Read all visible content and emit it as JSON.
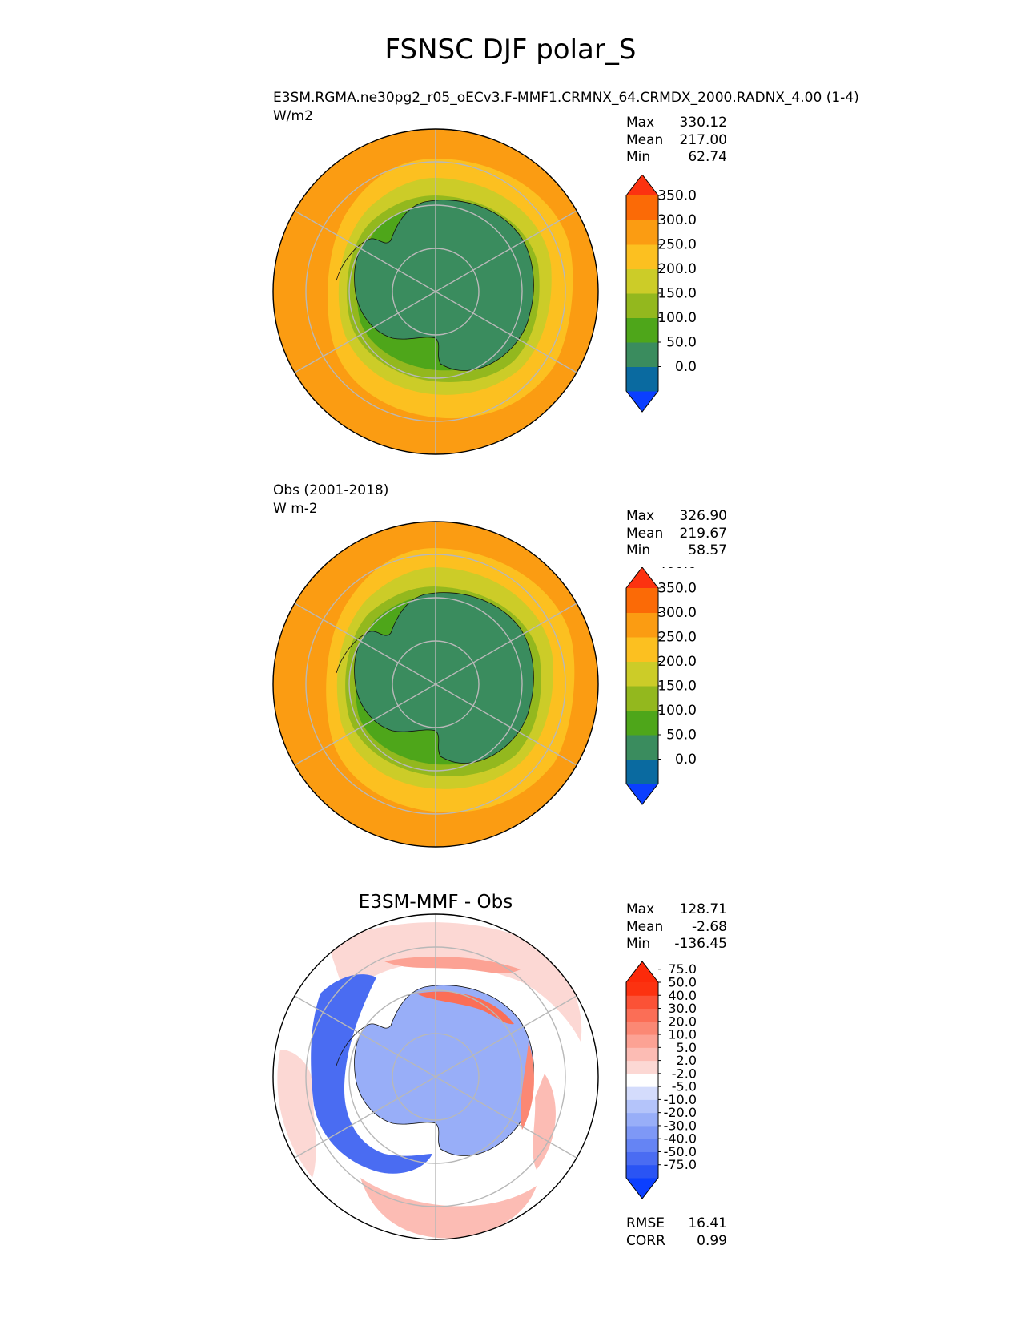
{
  "page": {
    "title": "FSNSC DJF polar_S"
  },
  "panels": [
    {
      "id": "test",
      "label_line1": "E3SM.RGMA.ne30pg2_r05_oECv3.F-MMF1.CRMNX_64.CRMDX_2000.RADNX_4.00 (1-4)",
      "label_line2": "W/m2",
      "stats": {
        "max_label": "Max",
        "max": "330.12",
        "mean_label": "Mean",
        "mean": "217.00",
        "min_label": "Min",
        "min": "62.74"
      },
      "colorbar": {
        "levels": [
          "0.0",
          "50.0",
          "100.0",
          "150.0",
          "200.0",
          "250.0",
          "300.0",
          "350.0",
          "400.0"
        ],
        "colors": [
          "#0b3fff",
          "#0a6aa0",
          "#3a8c5e",
          "#4ea61a",
          "#93b81e",
          "#cccc28",
          "#fcc020",
          "#fb9c12",
          "#fb6a06",
          "#fc3210"
        ]
      }
    },
    {
      "id": "reference",
      "label_line1": "Obs (2001-2018)",
      "label_line2": "W m-2",
      "stats": {
        "max_label": "Max",
        "max": "326.90",
        "mean_label": "Mean",
        "mean": "219.67",
        "min_label": "Min",
        "min": "58.57"
      },
      "colorbar": {
        "levels": [
          "0.0",
          "50.0",
          "100.0",
          "150.0",
          "200.0",
          "250.0",
          "300.0",
          "350.0",
          "400.0"
        ],
        "colors": [
          "#0b3fff",
          "#0a6aa0",
          "#3a8c5e",
          "#4ea61a",
          "#93b81e",
          "#cccc28",
          "#fcc020",
          "#fb9c12",
          "#fb6a06",
          "#fc3210"
        ]
      }
    },
    {
      "id": "difference",
      "title": "E3SM-MMF - Obs",
      "stats": {
        "max_label": "Max",
        "max": "128.71",
        "mean_label": "Mean",
        "mean": "-2.68",
        "min_label": "Min",
        "min": "-136.45"
      },
      "metrics": {
        "rmse_label": "RMSE",
        "rmse": "16.41",
        "corr_label": "CORR",
        "corr": "0.99"
      },
      "colorbar": {
        "levels": [
          "-75.0",
          "-50.0",
          "-40.0",
          "-30.0",
          "-20.0",
          "-10.0",
          "-5.0",
          "-2.0",
          "2.0",
          "5.0",
          "10.0",
          "20.0",
          "30.0",
          "40.0",
          "50.0",
          "75.0"
        ],
        "colors": [
          "#0b3fff",
          "#2a54f4",
          "#4a6cf2",
          "#6584f4",
          "#7e98f6",
          "#98aef8",
          "#b4c4fa",
          "#d4dcfc",
          "#ffffff",
          "#fcd8d4",
          "#fcbcb4",
          "#fca294",
          "#fb8874",
          "#fb6e56",
          "#fb5236",
          "#fc3210",
          "#fc2a0a"
        ]
      }
    }
  ],
  "chart_data": [
    {
      "type": "heatmap",
      "projection": "south polar stereographic",
      "title": "E3SM.RGMA.ne30pg2_r05_oECv3.F-MMF1.CRMNX_64.CRMDX_2000.RADNX_4.00 (1-4)",
      "units": "W/m2",
      "colorbar_levels": [
        0,
        50,
        100,
        150,
        200,
        250,
        300,
        350,
        400
      ],
      "colorbar_extend": "both",
      "summary": {
        "max": 330.12,
        "mean": 217.0,
        "min": 62.74
      }
    },
    {
      "type": "heatmap",
      "projection": "south polar stereographic",
      "title": "Obs (2001-2018)",
      "units": "W m-2",
      "colorbar_levels": [
        0,
        50,
        100,
        150,
        200,
        250,
        300,
        350,
        400
      ],
      "colorbar_extend": "both",
      "summary": {
        "max": 326.9,
        "mean": 219.67,
        "min": 58.57
      }
    },
    {
      "type": "heatmap",
      "projection": "south polar stereographic",
      "title": "E3SM-MMF - Obs",
      "colorbar_levels": [
        -75,
        -50,
        -40,
        -30,
        -20,
        -10,
        -5,
        -2,
        2,
        5,
        10,
        20,
        30,
        40,
        50,
        75
      ],
      "colorbar_extend": "both",
      "summary": {
        "max": 128.71,
        "mean": -2.68,
        "min": -136.45,
        "rmse": 16.41,
        "corr": 0.99
      }
    }
  ]
}
